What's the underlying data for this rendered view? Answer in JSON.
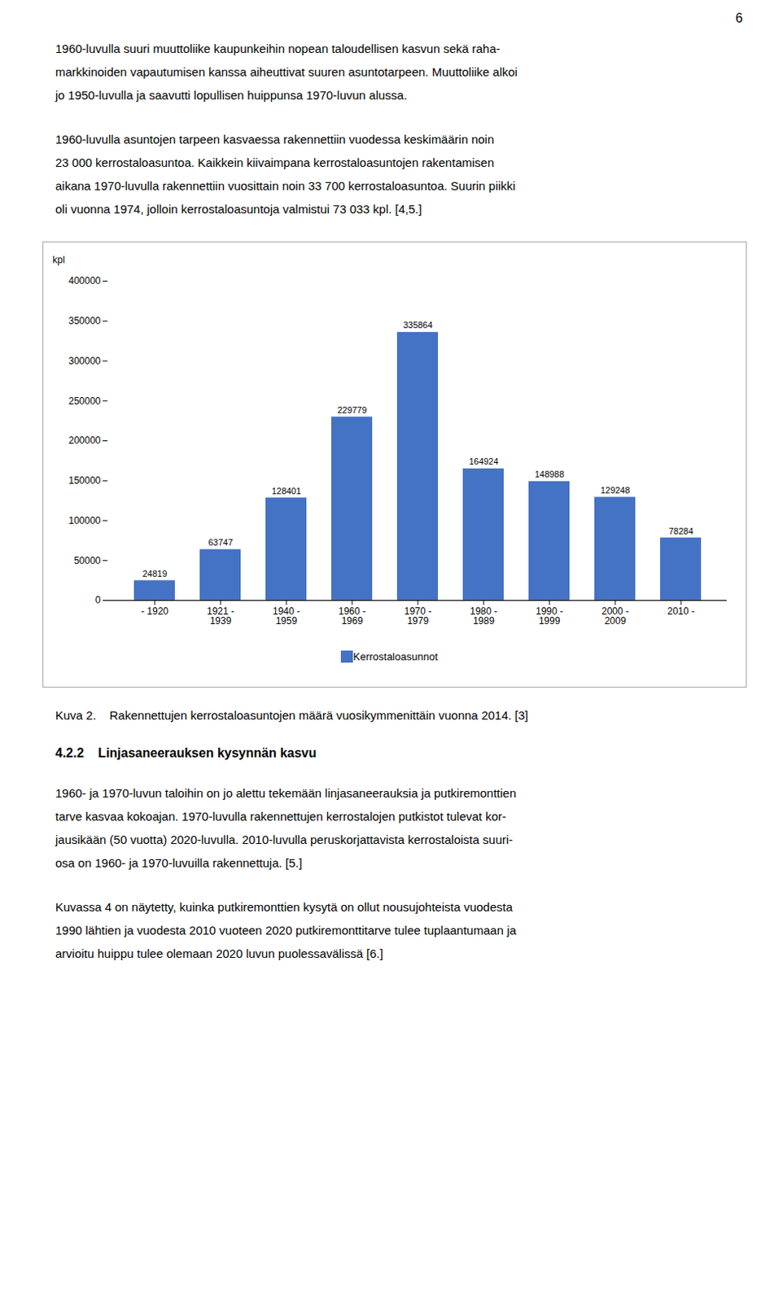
{
  "page_number": "6",
  "text_before": [
    [
      "1960-luvulla suuri muuttoliike kaupunkeihin nopean taloudellisen kasvun sekä raha-",
      "markkinoiden vapautumisen kanssa aiheuttivat suuren asuntotarpeen. Muuttoliike alkoi",
      "jo 1950-luvulla ja saavutti lopullisen huippunsa 1970-luvun alussa."
    ],
    [
      "1960-luvulla asuntojen tarpeen kasvaessa rakennettiin vuodessa keskimäärin noin",
      "23 000 kerrostaloasuntoa. Kaikkein kiivaimpana kerrostaloasuntojen rakentamisen",
      "aikana 1970-luvulla rakennettiin vuosittain noin 33 700 kerrostaloasuntoa. Suurin piikki",
      "oli vuonna 1974, jolloin kerrostaloasuntoja valmistui 73 033 kpl. [4,5.]"
    ]
  ],
  "chart_data": {
    "type": "bar",
    "categories": [
      "- 1920",
      "1921 -\n1939",
      "1940 -\n1959",
      "1960 -\n1969",
      "1970 -\n1979",
      "1980 -\n1989",
      "1990 -\n1999",
      "2000 -\n2009",
      "2010 -"
    ],
    "series": [
      {
        "name": "Kerrostaloasunnot",
        "color": "#4472C4",
        "values": [
          24819,
          63747,
          128401,
          229779,
          335864,
          164924,
          148988,
          129248,
          78284
        ]
      }
    ],
    "ylabel": "kpl",
    "ylim": [
      0,
      400000
    ],
    "yticks": [
      0,
      50000,
      100000,
      150000,
      200000,
      250000,
      300000,
      350000,
      400000
    ],
    "grid": false,
    "legend": "bottom",
    "data_labels": true
  },
  "caption": "Kuva 2.    Rakennettujen kerrostaloasuntojen määrä vuosikymmenittäin vuonna 2014. [3]",
  "section_header": "4.2.2    Linjasaneerauksen kysynnän kasvu",
  "text_after": [
    [
      "1960- ja 1970-luvun taloihin on jo alettu tekemään linjasaneerauksia ja putkiremonttien",
      "tarve kasvaa kokoajan. 1970-luvulla rakennettujen kerrostalojen putkistot tulevat kor-",
      "jausikään (50 vuotta) 2020-luvulla. 2010-luvulla peruskorjattavista kerrostaloista suuri-",
      "osa on 1960- ja 1970-luvuilla rakennettuja. [5.]"
    ],
    [
      "Kuvassa 4 on näytetty, kuinka putkiremonttien kysytä on ollut nousujohteista vuodesta",
      "1990 lähtien ja vuodesta 2010 vuoteen 2020 putkiremonttitarve tulee tuplaantumaan ja",
      "arvioitu huippu tulee olemaan 2020 luvun puolessavälissä [6.]"
    ]
  ]
}
